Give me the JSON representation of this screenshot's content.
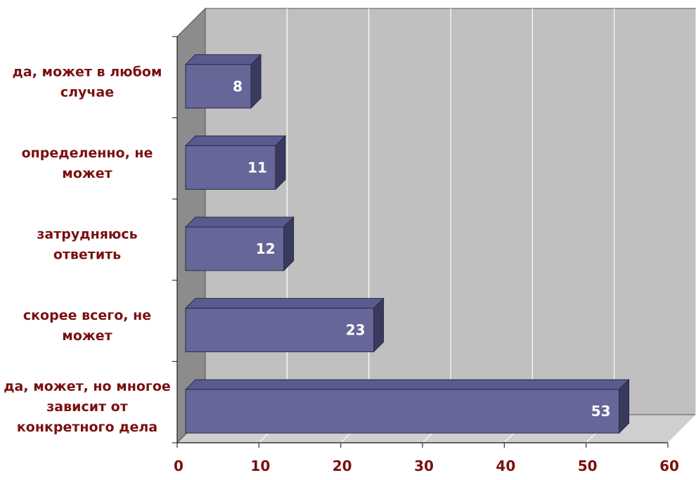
{
  "chart_data": {
    "type": "bar",
    "orientation": "horizontal",
    "style": "3d",
    "categories": [
      [
        "да, может в любом",
        "случае"
      ],
      [
        "определенно, не",
        "может"
      ],
      [
        "затрудняюсь",
        "ответить"
      ],
      [
        "скорее всего, не",
        "может"
      ],
      [
        "да, может, но многое",
        "зависит от",
        "конкретного дела"
      ]
    ],
    "values": [
      8,
      11,
      12,
      23,
      53
    ],
    "value_labels": [
      "8",
      "11",
      "12",
      "23",
      "53"
    ],
    "xlim": [
      0,
      60
    ],
    "x_ticks": [
      0,
      10,
      20,
      30,
      40,
      50,
      60
    ],
    "x_tick_labels": [
      "0",
      "10",
      "20",
      "30",
      "40",
      "50",
      "60"
    ],
    "grid": true,
    "colors": {
      "bar_front": "#676699",
      "bar_top": "#5a5a8e",
      "bar_side": "#3a3a5e",
      "back_wall": "#c0c0c0",
      "side_wall": "#8c8c8c",
      "floor": "#cfcfcf",
      "label_text": "#7a1010",
      "value_text": "#ffffff"
    }
  }
}
